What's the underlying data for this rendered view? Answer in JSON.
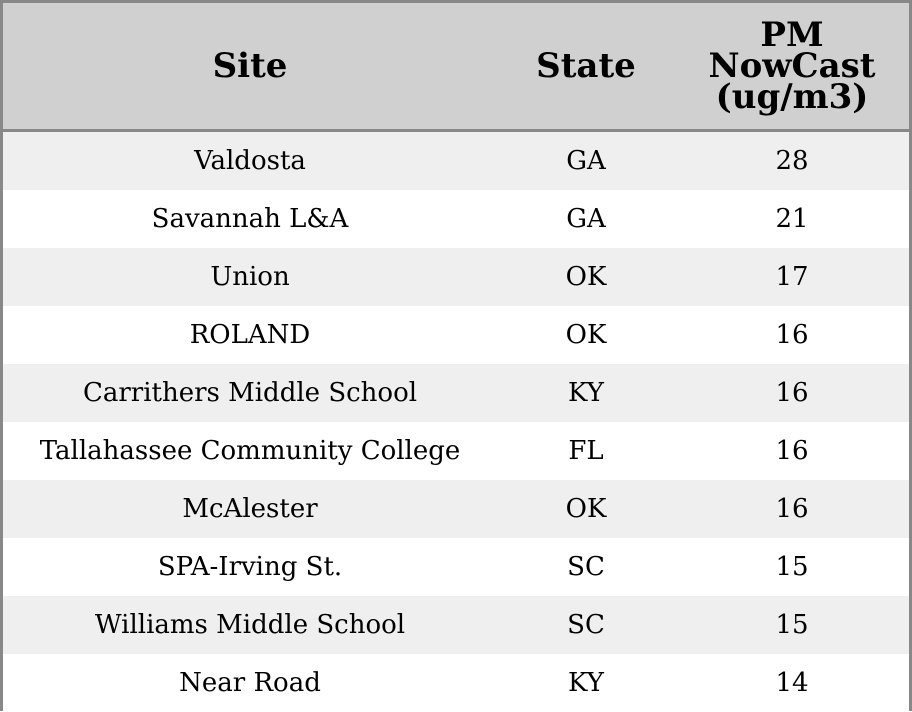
{
  "chart_data": {
    "type": "table",
    "columns": [
      "Site",
      "State",
      "PM NowCast (ug/m3)"
    ],
    "header_lines": [
      "PM",
      "NowCast",
      "(ug/m3)"
    ],
    "rows": [
      {
        "site": "Valdosta",
        "state": "GA",
        "pm": "28"
      },
      {
        "site": "Savannah L&A",
        "state": "GA",
        "pm": "21"
      },
      {
        "site": "Union",
        "state": "OK",
        "pm": "17"
      },
      {
        "site": "ROLAND",
        "state": "OK",
        "pm": "16"
      },
      {
        "site": "Carrithers Middle School",
        "state": "KY",
        "pm": "16"
      },
      {
        "site": "Tallahassee Community College",
        "state": "FL",
        "pm": "16"
      },
      {
        "site": "McAlester",
        "state": "OK",
        "pm": "16"
      },
      {
        "site": "SPA-Irving St.",
        "state": "SC",
        "pm": "15"
      },
      {
        "site": "Williams Middle School",
        "state": "SC",
        "pm": "15"
      },
      {
        "site": "Near Road",
        "state": "KY",
        "pm": "14"
      }
    ]
  },
  "colors": {
    "header_bg": "#d0d0d0",
    "stripe_bg": "#efefef",
    "row_bg": "#ffffff",
    "border": "#888888"
  }
}
